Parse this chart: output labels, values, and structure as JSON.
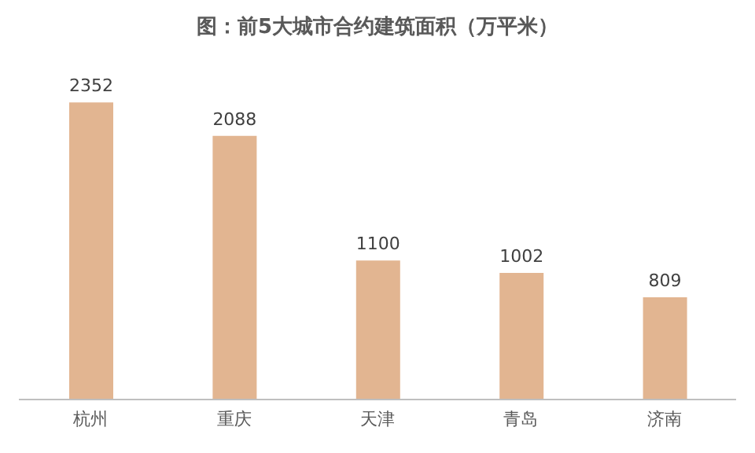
{
  "chart_data": {
    "type": "bar",
    "title": "图：前5大城市合约建筑面积（万平米）",
    "categories": [
      "杭州",
      "重庆",
      "天津",
      "青岛",
      "济南"
    ],
    "values": [
      2352,
      2088,
      1100,
      1002,
      809
    ],
    "color": "#e2b591",
    "data_labels": true
  }
}
